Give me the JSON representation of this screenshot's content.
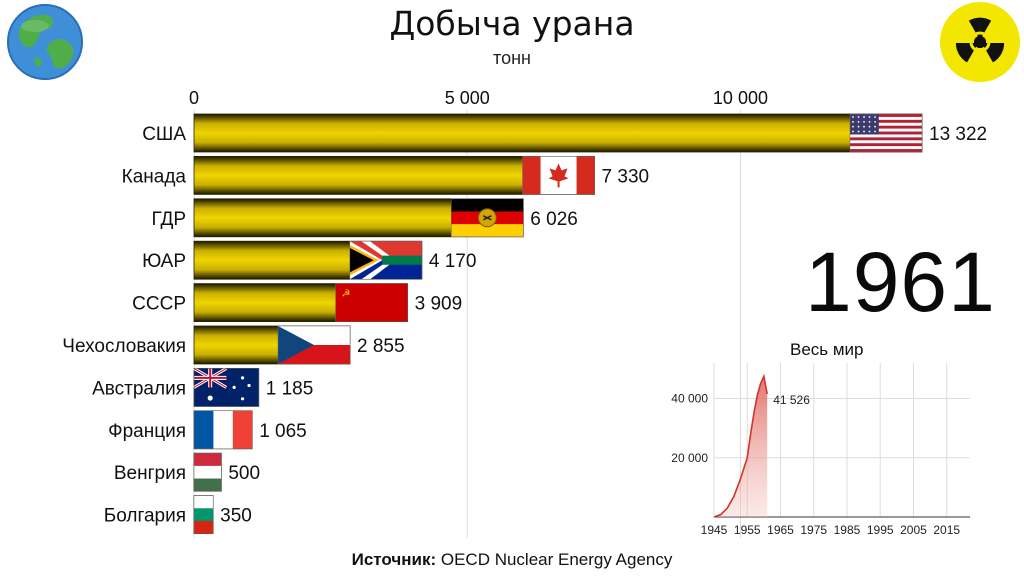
{
  "title": "Добыча урана",
  "subtitle": "тонн",
  "year": "1961",
  "source": {
    "label": "Источник:",
    "text": "OECD Nuclear Energy Agency"
  },
  "colors": {
    "bar_edge": "#1a1600",
    "bar_mid": "#e6c800",
    "line": "#d2332a",
    "area": "#e88a84"
  },
  "icons": {
    "left": "globe-icon",
    "right": "radiation-icon"
  },
  "chart_data": [
    {
      "type": "bar",
      "orientation": "horizontal",
      "title": "Добыча урана",
      "subtitle": "тонн",
      "xlim": [
        0,
        13322
      ],
      "ticks": [
        0,
        5000,
        10000
      ],
      "tick_labels": [
        "0",
        "5 000",
        "10 000"
      ],
      "axis_position": "top",
      "grid": true,
      "categories": [
        "США",
        "Канада",
        "ГДР",
        "ЮАР",
        "СССР",
        "Чехословакия",
        "Австралия",
        "Франция",
        "Венгрия",
        "Болгария"
      ],
      "values": [
        13322,
        7330,
        6026,
        4170,
        3909,
        2855,
        1185,
        1065,
        500,
        350
      ],
      "value_labels": [
        "13 322",
        "7 330",
        "6 026",
        "4 170",
        "3 909",
        "2 855",
        "1 185",
        "1 065",
        "500",
        "350"
      ],
      "flags": [
        "us-flag",
        "ca-flag",
        "gdr-flag",
        "za-flag",
        "ussr-flag",
        "cz-flag",
        "au-flag",
        "fr-flag",
        "hu-flag",
        "bg-flag"
      ]
    },
    {
      "type": "area",
      "title": "Весь мир",
      "x": [
        1945,
        1947,
        1949,
        1951,
        1953,
        1955,
        1956,
        1957,
        1958,
        1959,
        1960,
        1961
      ],
      "y": [
        0,
        800,
        3000,
        7000,
        13000,
        20000,
        28000,
        35000,
        41000,
        45000,
        47500,
        41526
      ],
      "xlim": [
        1945,
        2022
      ],
      "ylim": [
        0,
        52000
      ],
      "xticks": [
        1945,
        1955,
        1965,
        1975,
        1985,
        1995,
        2005,
        2015
      ],
      "yticks": [
        20000,
        40000
      ],
      "ytick_labels": [
        "20 000",
        "40 000"
      ],
      "annotation": "41 526",
      "grid": true
    }
  ]
}
